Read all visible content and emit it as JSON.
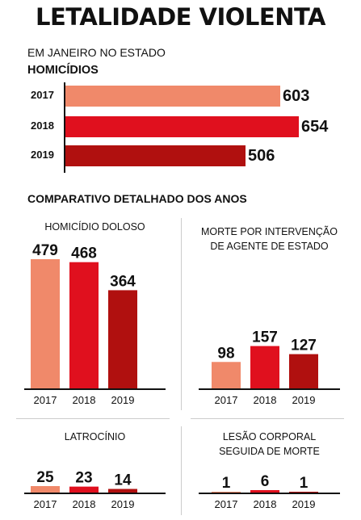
{
  "title": "LETALIDADE VIOLENTA",
  "subtitle": "EM JANEIRO NO ESTADO",
  "colors": {
    "y2017": "#f0896a",
    "y2018": "#e0101e",
    "y2019": "#b0100f"
  },
  "chart_data": [
    {
      "type": "bar",
      "orientation": "horizontal",
      "title": "HOMICÍDIOS",
      "categories": [
        "2017",
        "2018",
        "2019"
      ],
      "values": [
        603,
        654,
        506
      ],
      "labels": [
        "603",
        "654",
        "506"
      ]
    },
    {
      "type": "bar",
      "section_title": "COMPARATIVO DETALHADO DOS ANOS",
      "title": "HOMICÍDIO DOLOSO",
      "categories": [
        "2017",
        "2018",
        "2019"
      ],
      "values": [
        479,
        468,
        364
      ],
      "labels": [
        "479",
        "468",
        "364"
      ]
    },
    {
      "type": "bar",
      "title": "MORTE POR INTERVENÇÃO DE AGENTE DE ESTADO",
      "title_lines": [
        "MORTE POR INTERVENÇÃO",
        "DE AGENTE DE ESTADO"
      ],
      "categories": [
        "2017",
        "2018",
        "2019"
      ],
      "values": [
        98,
        157,
        127
      ],
      "labels": [
        "98",
        "157",
        "127"
      ]
    },
    {
      "type": "bar",
      "title": "LATROCÍNIO",
      "categories": [
        "2017",
        "2018",
        "2019"
      ],
      "values": [
        25,
        23,
        14
      ],
      "labels": [
        "25",
        "23",
        "14"
      ]
    },
    {
      "type": "bar",
      "title": "LESÃO CORPORAL SEGUIDA DE MORTE",
      "title_lines": [
        "LESÃO CORPORAL",
        "SEGUIDA DE MORTE"
      ],
      "categories": [
        "2017",
        "2018",
        "2019"
      ],
      "values": [
        1,
        6,
        1
      ],
      "labels": [
        "1",
        "6",
        "1"
      ]
    }
  ]
}
